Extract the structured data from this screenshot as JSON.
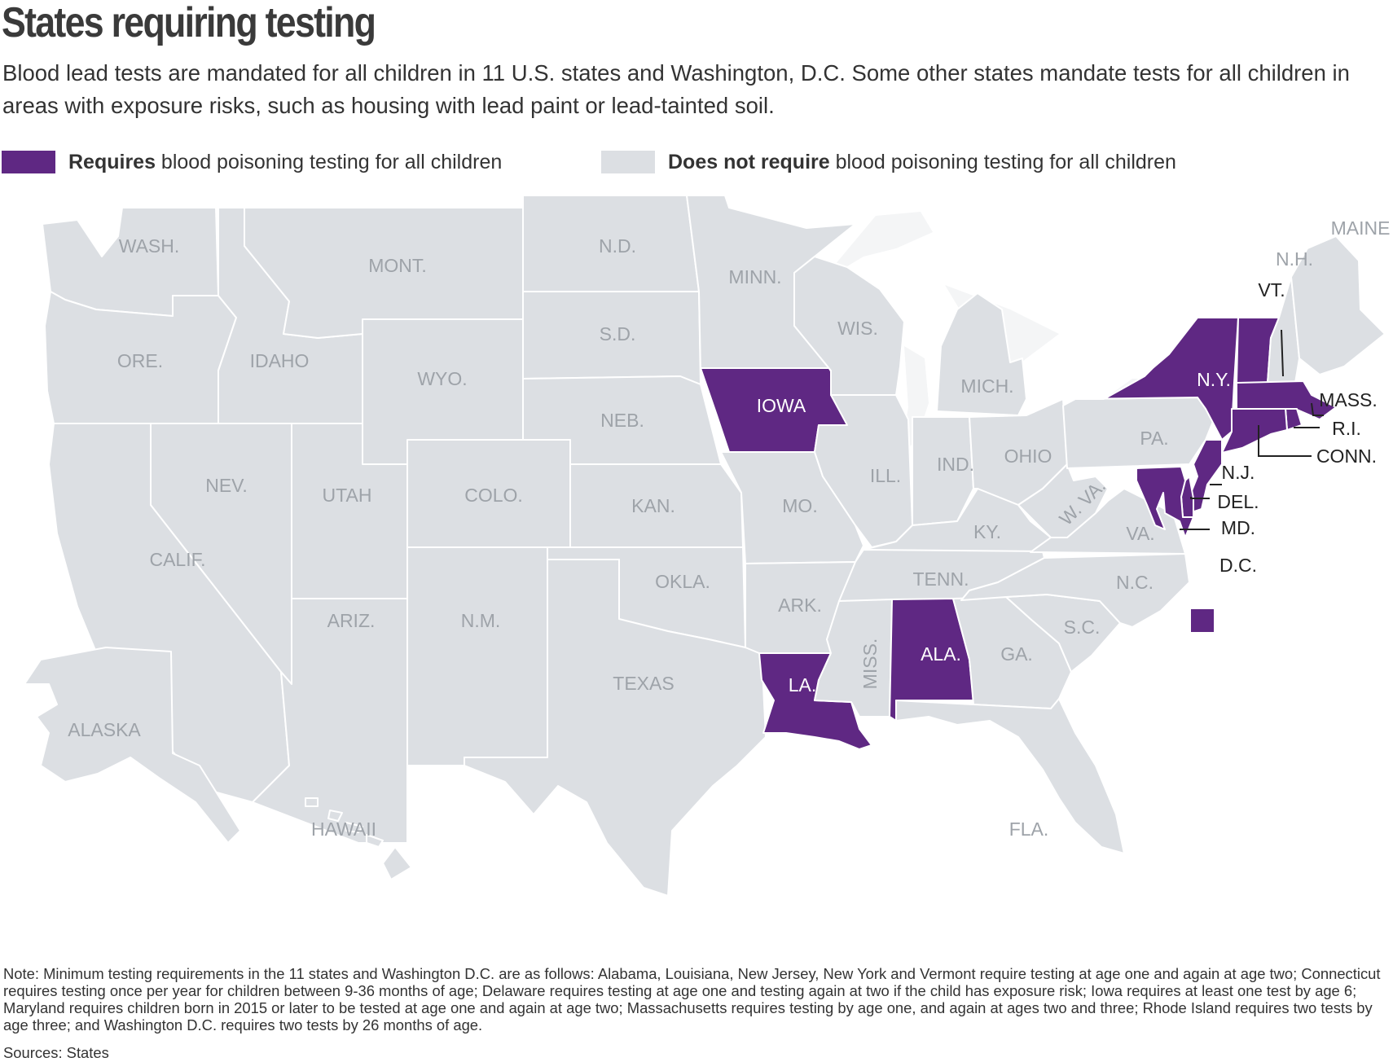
{
  "title": "States requiring testing",
  "subtitle": "Blood lead tests are mandated for all children in 11 U.S. states and Washington, D.C. Some other states mandate tests for all children in areas with exposure risks, such as housing with lead paint or lead-tainted soil.",
  "legend": {
    "requires": {
      "bold": "Requires",
      "rest": " blood poisoning testing for all children",
      "color": "#5f2883"
    },
    "not_requires": {
      "bold": "Does not require",
      "rest": " blood poisoning testing for all children",
      "color": "#dcdfe3"
    }
  },
  "colors": {
    "requires": "#5f2883",
    "not_requires": "#dcdfe3",
    "lakes": "#f4f5f6",
    "label_on_gray": "#9ea3a9",
    "label_on_purple": "#ffffff",
    "label_outside": "#222222"
  },
  "states": {
    "wash": {
      "label": "WASH.",
      "requires": false
    },
    "ore": {
      "label": "ORE.",
      "requires": false
    },
    "calif": {
      "label": "CALIF.",
      "requires": false
    },
    "idaho": {
      "label": "IDAHO",
      "requires": false
    },
    "nev": {
      "label": "NEV.",
      "requires": false
    },
    "mont": {
      "label": "MONT.",
      "requires": false
    },
    "wyo": {
      "label": "WYO.",
      "requires": false
    },
    "utah": {
      "label": "UTAH",
      "requires": false
    },
    "colo": {
      "label": "COLO.",
      "requires": false
    },
    "ariz": {
      "label": "ARIZ.",
      "requires": false
    },
    "nm": {
      "label": "N.M.",
      "requires": false
    },
    "nd": {
      "label": "N.D.",
      "requires": false
    },
    "sd": {
      "label": "S.D.",
      "requires": false
    },
    "neb": {
      "label": "NEB.",
      "requires": false
    },
    "kan": {
      "label": "KAN.",
      "requires": false
    },
    "okla": {
      "label": "OKLA.",
      "requires": false
    },
    "texas": {
      "label": "TEXAS",
      "requires": false
    },
    "minn": {
      "label": "MINN.",
      "requires": false
    },
    "iowa": {
      "label": "IOWA",
      "requires": true
    },
    "mo": {
      "label": "MO.",
      "requires": false
    },
    "ark": {
      "label": "ARK.",
      "requires": false
    },
    "la": {
      "label": "LA.",
      "requires": true
    },
    "wis": {
      "label": "WIS.",
      "requires": false
    },
    "ill": {
      "label": "ILL.",
      "requires": false
    },
    "mich": {
      "label": "MICH.",
      "requires": false
    },
    "ind": {
      "label": "IND.",
      "requires": false
    },
    "ohio": {
      "label": "OHIO",
      "requires": false
    },
    "ky": {
      "label": "KY.",
      "requires": false
    },
    "tenn": {
      "label": "TENN.",
      "requires": false
    },
    "miss": {
      "label": "MISS.",
      "requires": false
    },
    "ala": {
      "label": "ALA.",
      "requires": true
    },
    "ga": {
      "label": "GA.",
      "requires": false
    },
    "fla": {
      "label": "FLA.",
      "requires": false
    },
    "sc": {
      "label": "S.C.",
      "requires": false
    },
    "nc": {
      "label": "N.C.",
      "requires": false
    },
    "va": {
      "label": "VA.",
      "requires": false
    },
    "wva": {
      "label": "W. VA.",
      "requires": false
    },
    "pa": {
      "label": "PA.",
      "requires": false
    },
    "ny": {
      "label": "N.Y.",
      "requires": true
    },
    "vt": {
      "label": "VT.",
      "requires": true
    },
    "nh": {
      "label": "N.H.",
      "requires": false
    },
    "maine": {
      "label": "MAINE",
      "requires": false
    },
    "mass": {
      "label": "MASS.",
      "requires": true
    },
    "ri": {
      "label": "R.I.",
      "requires": true
    },
    "conn": {
      "label": "CONN.",
      "requires": true
    },
    "nj": {
      "label": "N.J.",
      "requires": true
    },
    "del": {
      "label": "DEL.",
      "requires": true
    },
    "md": {
      "label": "MD.",
      "requires": true
    },
    "dc": {
      "label": "D.C.",
      "requires": true
    },
    "alaska": {
      "label": "ALASKA",
      "requires": false
    },
    "hawaii": {
      "label": "HAWAII",
      "requires": false
    }
  },
  "note": "Note: Minimum testing requirements in the 11 states and Washington D.C. are as follows: Alabama, Louisiana, New Jersey, New York and Vermont require testing at age one and again at age two; Connecticut requires testing once per year for children between 9-36 months of age; Delaware requires testing at age one and testing again at two if the child has exposure risk; Iowa requires at least one test by age 6; Maryland requires children born in 2015 or later to be tested at age one and again at age two; Massachusetts requires testing by age one, and again at ages two and three; Rhode Island requires two tests by age three; and Washington D.C. requires two tests by 26 months of age.",
  "sources": "Sources: States"
}
